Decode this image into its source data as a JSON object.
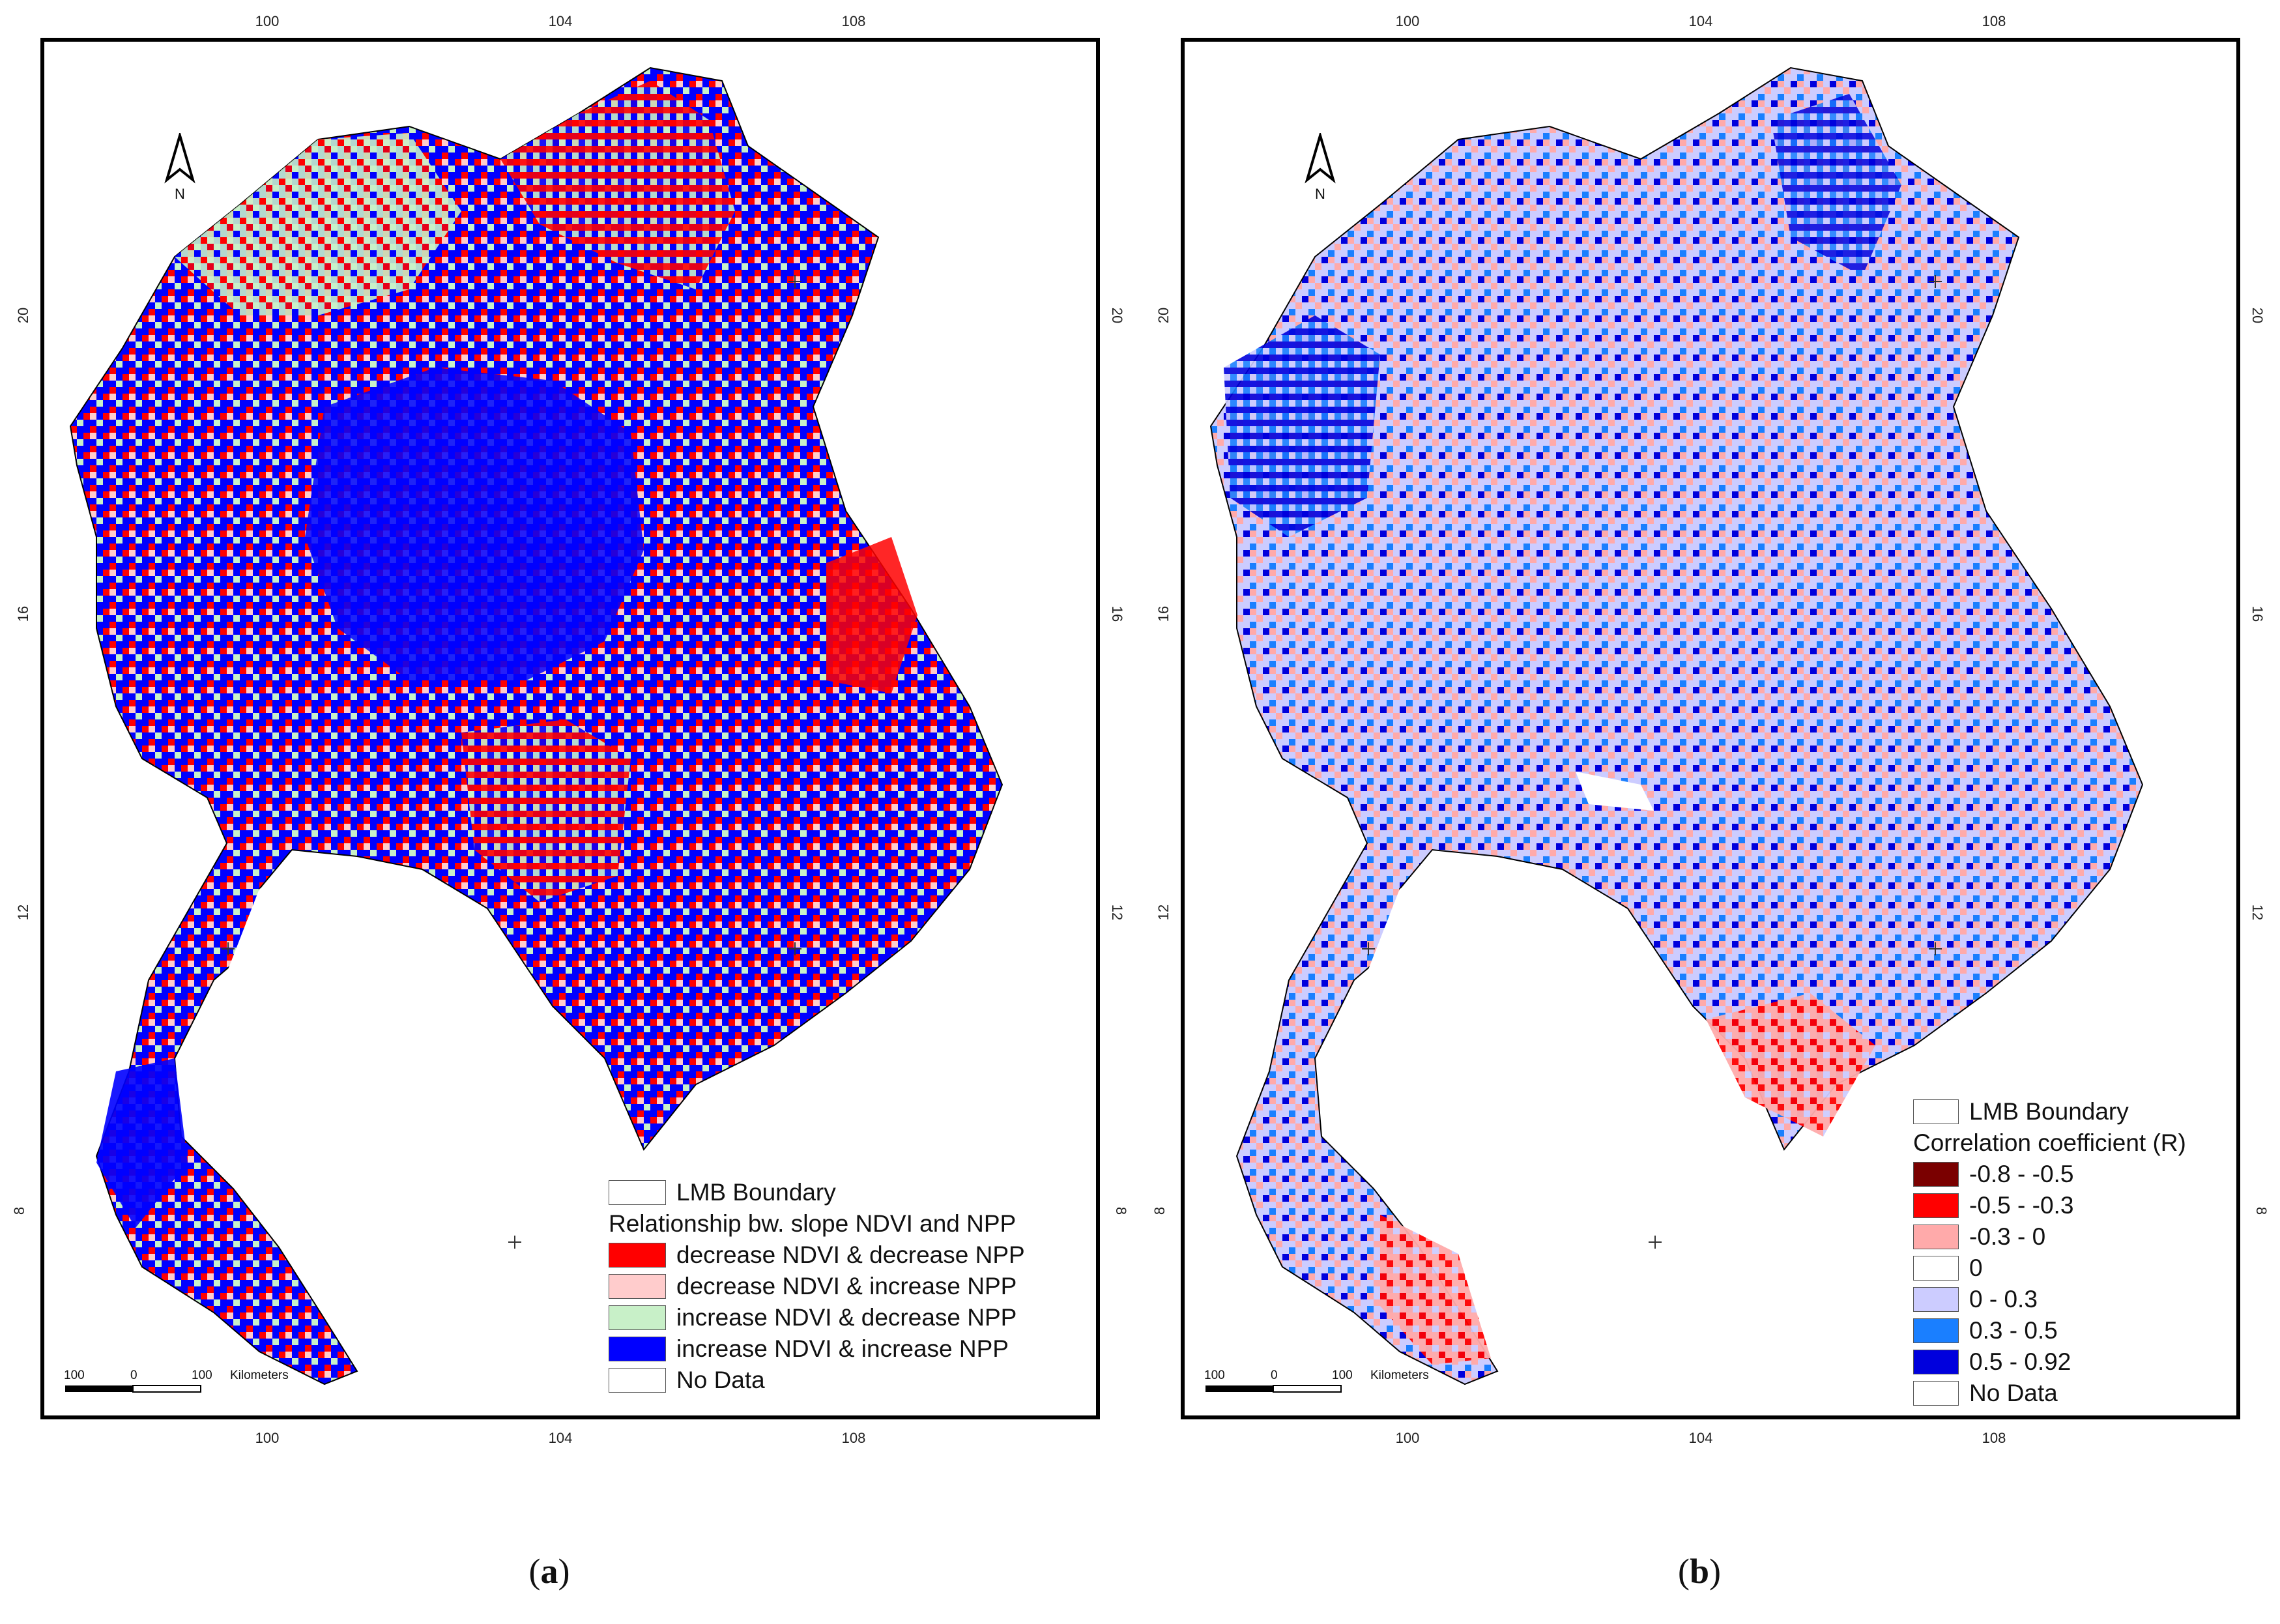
{
  "panels": [
    {
      "id": "a",
      "caption_open": "(",
      "caption_letter": "a",
      "caption_close": ")",
      "lon_ticks": [
        "100",
        "104",
        "108"
      ],
      "lat_ticks": [
        "20",
        "16",
        "12",
        "8"
      ],
      "north_label": "N",
      "scale": {
        "left": "100",
        "mid": "0",
        "right": "100",
        "unit": "Kilometers"
      },
      "legend": {
        "boundary_label": "LMB Boundary",
        "title": "Relationship bw. slope NDVI and NPP",
        "classes": [
          {
            "label": "decrease NDVI & decrease NPP",
            "color": "#ff0000"
          },
          {
            "label": "decrease NDVI & increase NPP",
            "color": "#ffcccc"
          },
          {
            "label": "increase NDVI & decrease NPP",
            "color": "#c8f0c8"
          },
          {
            "label": "increase NDVI & increase NPP",
            "color": "#0000ff"
          },
          {
            "label": "No Data",
            "color": "#ffffff"
          }
        ]
      }
    },
    {
      "id": "b",
      "caption_open": "(",
      "caption_letter": "b",
      "caption_close": ")",
      "lon_ticks": [
        "100",
        "104",
        "108"
      ],
      "lat_ticks": [
        "20",
        "16",
        "12",
        "8"
      ],
      "north_label": "N",
      "scale": {
        "left": "100",
        "mid": "0",
        "right": "100",
        "unit": "Kilometers"
      },
      "legend": {
        "boundary_label": "LMB Boundary",
        "title": "Correlation coefficient (R)",
        "classes": [
          {
            "label": "-0.8 - -0.5",
            "color": "#7a0000"
          },
          {
            "label": "-0.5 - -0.3",
            "color": "#ff0000"
          },
          {
            "label": "-0.3 - 0",
            "color": "#ffaaaa"
          },
          {
            "label": "0",
            "color": "#ffffff"
          },
          {
            "label": "0 - 0.3",
            "color": "#ccccff"
          },
          {
            "label": "0.3 - 0.5",
            "color": "#1a7fff"
          },
          {
            "label": "0.5 - 0.92",
            "color": "#0000dd"
          },
          {
            "label": "No Data",
            "color": "#ffffff"
          }
        ]
      }
    }
  ]
}
